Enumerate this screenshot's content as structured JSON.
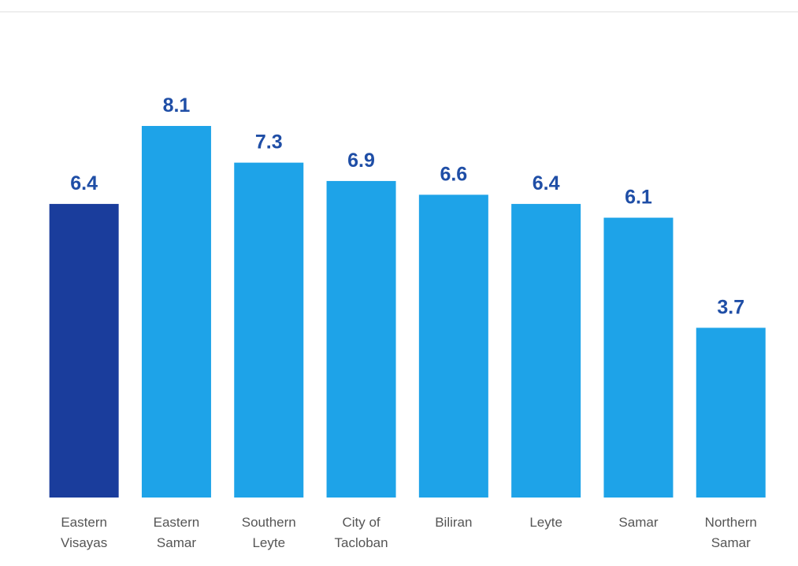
{
  "chart_data": {
    "type": "bar",
    "categories": [
      [
        "Eastern",
        "Visayas"
      ],
      [
        "Eastern",
        "Samar"
      ],
      [
        "Southern",
        "Leyte"
      ],
      [
        "City of",
        "Tacloban"
      ],
      [
        "Biliran"
      ],
      [
        "Leyte"
      ],
      [
        "Samar"
      ],
      [
        "Northern",
        "Samar"
      ]
    ],
    "values": [
      6.4,
      8.1,
      7.3,
      6.9,
      6.6,
      6.4,
      6.1,
      3.7
    ],
    "colors": [
      "#1a3d9c",
      "#1ea3e8",
      "#1ea3e8",
      "#1ea3e8",
      "#1ea3e8",
      "#1ea3e8",
      "#1ea3e8",
      "#1ea3e8"
    ],
    "value_label_color": "#1f4ea6"
  }
}
